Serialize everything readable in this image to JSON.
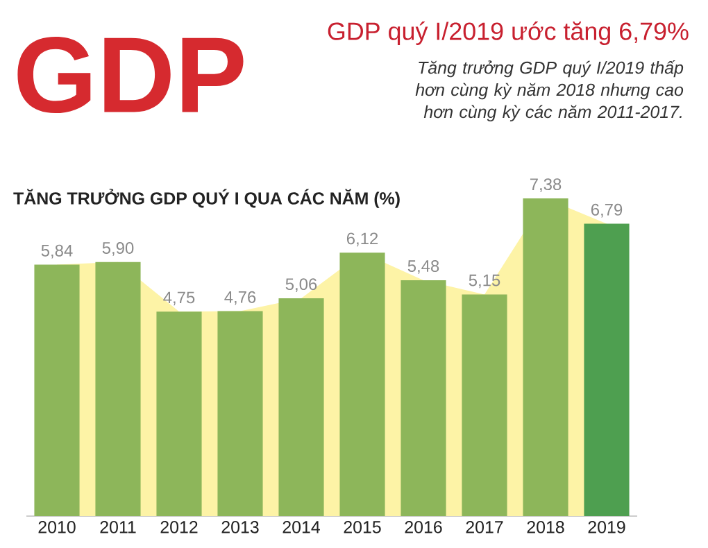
{
  "chart_data": {
    "type": "bar",
    "title": "GDP quý I/2019 ước tăng 6,79%",
    "subtitle": "Tăng trưởng GDP quý I/2019 thấp hơn cùng kỳ năm 2018 nhưng cao hơn cùng kỳ các năm 2011-2017.",
    "annotations": [
      "GDP",
      "TĂNG TRƯỞNG GDP QUÝ I QUA CÁC NĂM (%)"
    ],
    "categories": [
      "2010",
      "2011",
      "2012",
      "2013",
      "2014",
      "2015",
      "2016",
      "2017",
      "2018",
      "2019"
    ],
    "series": [
      {
        "type": "area",
        "color": "#fdf3a6",
        "values": [
          5.84,
          5.9,
          4.75,
          4.76,
          5.06,
          6.12,
          5.48,
          5.15,
          7.38,
          6.79
        ]
      },
      {
        "colors": [
          "#8db65a",
          "#8db65a",
          "#8db65a",
          "#8db65a",
          "#8db65a",
          "#8db65a",
          "#8db65a",
          "#8db65a",
          "#8db65a",
          "#4e9f50"
        ],
        "values": [
          5.84,
          5.9,
          4.75,
          4.76,
          5.06,
          6.12,
          5.48,
          5.15,
          7.38,
          6.79
        ],
        "value_labels": [
          "5,84",
          "5,90",
          "4,75",
          "4,76",
          "5,06",
          "6,12",
          "5,48",
          "5,15",
          "7,38",
          "6,79"
        ]
      }
    ]
  }
}
